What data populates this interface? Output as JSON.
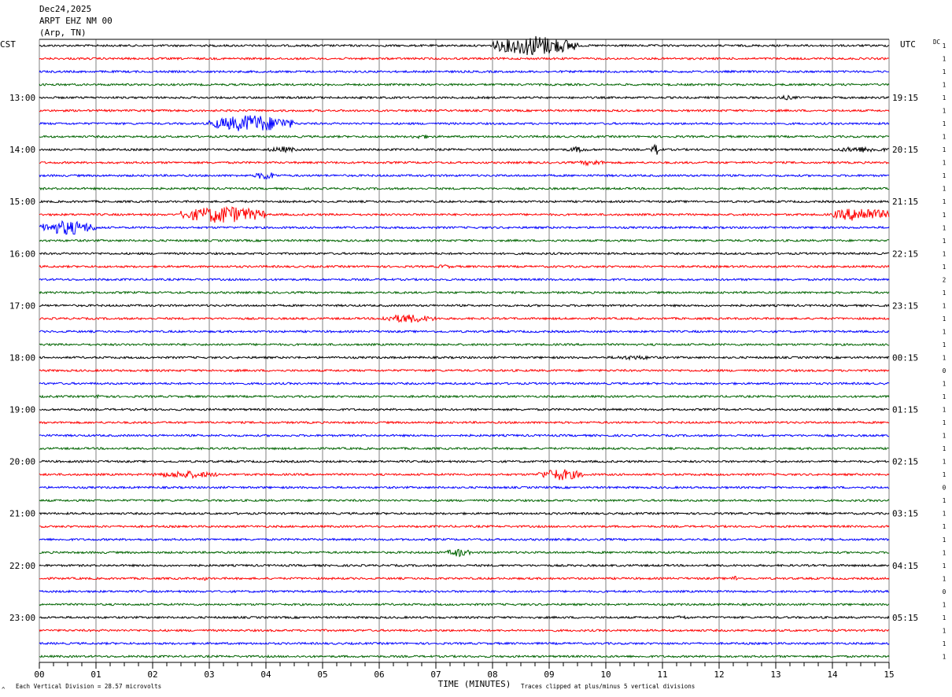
{
  "header": {
    "date": "Dec24,2025",
    "station": "ARPT EHZ NM 00",
    "location": "(Arp, TN)"
  },
  "left_timezone": "CST",
  "right_timezone": "UTC",
  "dc_header": "DC",
  "footer": {
    "vertical_division": "Each Vertical Division =   28.57 microvolts",
    "xlabel": "TIME (MINUTES)",
    "clip_note": "Traces clipped at plus/minus 5 vertical divisions",
    "corner_mark": "^"
  },
  "colors": {
    "trace_cycle": [
      "#000000",
      "#ff0000",
      "#0000ff",
      "#006400"
    ],
    "grid": "#808080"
  },
  "chart_data": {
    "type": "line",
    "title": "ARPT EHZ NM 00 (Arp, TN)",
    "xlabel": "TIME (MINUTES)",
    "xlim": [
      0,
      15
    ],
    "x_ticks": [
      "00",
      "01",
      "02",
      "03",
      "04",
      "05",
      "06",
      "07",
      "08",
      "09",
      "10",
      "11",
      "12",
      "13",
      "14",
      "15"
    ],
    "trace_count": 48,
    "traces_per_hour": 4,
    "left_hour_labels": [
      "13:00",
      "14:00",
      "15:00",
      "16:00",
      "17:00",
      "18:00",
      "19:00",
      "20:00",
      "21:00",
      "22:00",
      "23:00"
    ],
    "right_hour_labels": [
      "19:15",
      "20:15",
      "21:15",
      "22:15",
      "23:15",
      "00:15",
      "01:15",
      "02:15",
      "03:15",
      "04:15",
      "05:15"
    ],
    "dc_offsets": [
      1,
      1,
      1,
      1,
      1,
      1,
      1,
      1,
      1,
      1,
      1,
      1,
      1,
      1,
      1,
      1,
      1,
      1,
      2,
      1,
      1,
      1,
      1,
      1,
      1,
      0,
      1,
      1,
      1,
      1,
      1,
      1,
      1,
      1,
      0,
      1,
      1,
      1,
      1,
      1,
      1,
      1,
      0,
      1,
      1,
      1,
      1,
      1
    ],
    "events": [
      {
        "trace": 0,
        "start_min": 8.0,
        "end_min": 9.5,
        "amplitude": 14
      },
      {
        "trace": 6,
        "start_min": 3.0,
        "end_min": 4.5,
        "amplitude": 12
      },
      {
        "trace": 4,
        "start_min": 13.0,
        "end_min": 13.4,
        "amplitude": 3
      },
      {
        "trace": 7,
        "start_min": 6.5,
        "end_min": 7.0,
        "amplitude": 3
      },
      {
        "trace": 8,
        "start_min": 4.0,
        "end_min": 4.6,
        "amplitude": 4
      },
      {
        "trace": 8,
        "start_min": 9.3,
        "end_min": 9.7,
        "amplitude": 4
      },
      {
        "trace": 8,
        "start_min": 10.8,
        "end_min": 11.0,
        "amplitude": 8
      },
      {
        "trace": 8,
        "start_min": 14.0,
        "end_min": 15.0,
        "amplitude": 4
      },
      {
        "trace": 9,
        "start_min": 9.5,
        "end_min": 10.0,
        "amplitude": 4
      },
      {
        "trace": 10,
        "start_min": 3.8,
        "end_min": 4.2,
        "amplitude": 6
      },
      {
        "trace": 13,
        "start_min": 2.5,
        "end_min": 4.0,
        "amplitude": 12
      },
      {
        "trace": 13,
        "start_min": 14.0,
        "end_min": 15.0,
        "amplitude": 10
      },
      {
        "trace": 14,
        "start_min": 0.0,
        "end_min": 1.0,
        "amplitude": 10
      },
      {
        "trace": 17,
        "start_min": 7.0,
        "end_min": 7.3,
        "amplitude": 3
      },
      {
        "trace": 21,
        "start_min": 6.0,
        "end_min": 7.0,
        "amplitude": 6
      },
      {
        "trace": 24,
        "start_min": 10.0,
        "end_min": 11.0,
        "amplitude": 3
      },
      {
        "trace": 27,
        "start_min": 1.0,
        "end_min": 1.2,
        "amplitude": 4
      },
      {
        "trace": 33,
        "start_min": 2.0,
        "end_min": 3.2,
        "amplitude": 5
      },
      {
        "trace": 33,
        "start_min": 8.8,
        "end_min": 9.6,
        "amplitude": 8
      },
      {
        "trace": 39,
        "start_min": 7.2,
        "end_min": 7.6,
        "amplitude": 6
      },
      {
        "trace": 41,
        "start_min": 2.8,
        "end_min": 3.0,
        "amplitude": 3
      },
      {
        "trace": 41,
        "start_min": 12.2,
        "end_min": 12.4,
        "amplitude": 4
      },
      {
        "trace": 44,
        "start_min": 11.2,
        "end_min": 11.5,
        "amplitude": 3
      }
    ]
  }
}
